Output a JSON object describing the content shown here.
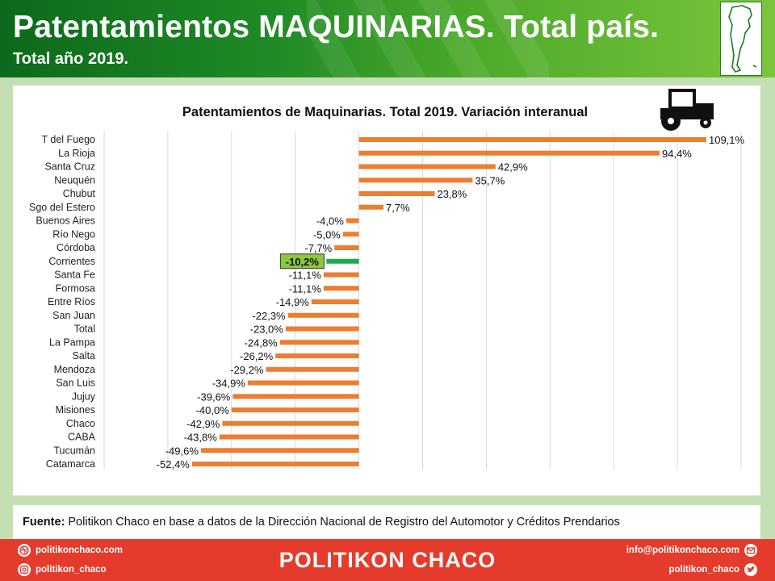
{
  "header": {
    "title": "Patentamientos MAQUINARIAS. Total país.",
    "subtitle": "Total año 2019."
  },
  "source": {
    "label": "Fuente:",
    "text": "Politikon Chaco en base a datos de la Dirección Nacional de Registro del Automotor y Créditos Prendarios"
  },
  "footer": {
    "brand": "POLITIKON CHACO",
    "website": "politikonchaco.com",
    "instagram": "politikon_chaco",
    "email": "info@politikonchaco.com",
    "twitter": "politikon_chaco"
  },
  "colors": {
    "bar": "#ed7d31",
    "highlight": "#1faa4f",
    "highlight_label_bg": "#8dc63f"
  },
  "icons": [
    "tractor-icon",
    "argentina-map-icon",
    "dribbble-icon",
    "instagram-icon",
    "email-icon",
    "twitter-icon"
  ],
  "chart_data": {
    "type": "bar",
    "orientation": "horizontal",
    "title": "Patentamientos de Maquinarias. Total 2019. Variación interanual",
    "categories": [
      "T del Fuego",
      "La Rioja",
      "Santa Cruz",
      "Neuquén",
      "Chubut",
      "Sgo del Estero",
      "Buenos Aires",
      "Río Nego",
      "Córdoba",
      "Corrientes",
      "Santa Fe",
      "Formosa",
      "Entre Ríos",
      "San Juan",
      "Total",
      "La Pampa",
      "Salta",
      "Mendoza",
      "San Luis",
      "Jujuy",
      "Misiones",
      "Chaco",
      "CABA",
      "Tucumán",
      "Catamarca"
    ],
    "values": [
      109.1,
      94.4,
      42.9,
      35.7,
      23.8,
      7.7,
      -4.0,
      -5.0,
      -7.7,
      -10.2,
      -11.1,
      -11.1,
      -14.9,
      -22.3,
      -23.0,
      -24.8,
      -26.2,
      -29.2,
      -34.9,
      -39.6,
      -40.0,
      -42.9,
      -43.8,
      -49.6,
      -52.4
    ],
    "labels": [
      "109,1%",
      "94,4%",
      "42,9%",
      "35,7%",
      "23,8%",
      "7,7%",
      "-4,0%",
      "-5,0%",
      "-7,7%",
      "-10,2%",
      "-11,1%",
      "-11,1%",
      "-14,9%",
      "-22,3%",
      "-23,0%",
      "-24,8%",
      "-26,2%",
      "-29,2%",
      "-34,9%",
      "-39,6%",
      "-40,0%",
      "-42,9%",
      "-43,8%",
      "-49,6%",
      "-52,4%"
    ],
    "highlight": "Corrientes",
    "xlim": [
      -80,
      120
    ],
    "grid": true
  }
}
